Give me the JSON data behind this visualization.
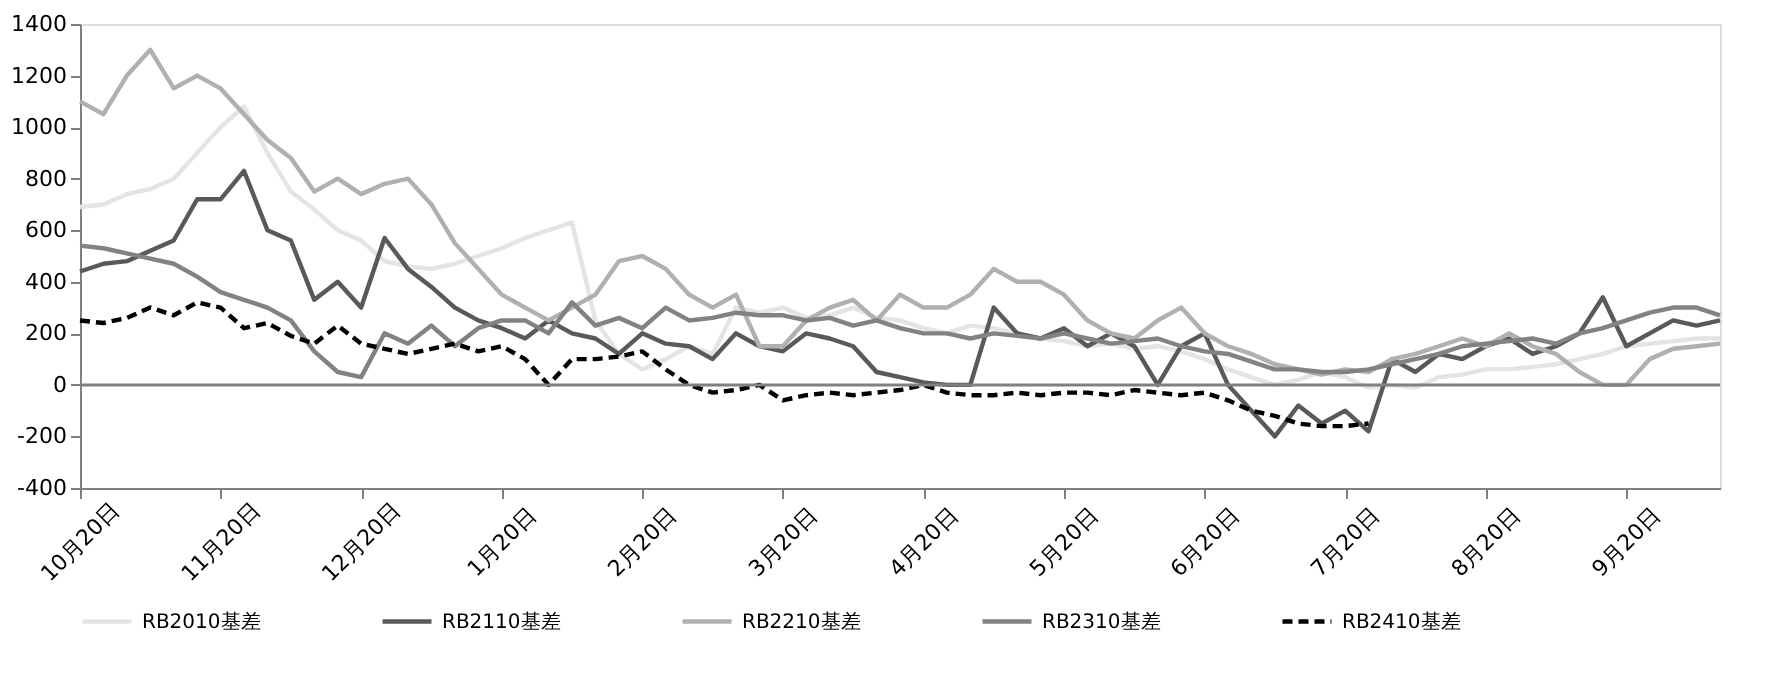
{
  "chart_data": {
    "type": "line",
    "categories": [
      "10月20日",
      null,
      null,
      null,
      null,
      null,
      "11月20日",
      null,
      null,
      null,
      null,
      null,
      "12月20日",
      null,
      null,
      null,
      null,
      null,
      "1月20日",
      null,
      null,
      null,
      null,
      null,
      "2月20日",
      null,
      null,
      null,
      null,
      null,
      "3月20日",
      null,
      null,
      null,
      null,
      null,
      "4月20日",
      null,
      null,
      null,
      null,
      null,
      "5月20日",
      null,
      null,
      null,
      null,
      null,
      "6月20日",
      null,
      null,
      null,
      null,
      null,
      "7月20日",
      null,
      null,
      null,
      null,
      null,
      "8月20日",
      null,
      null,
      null,
      null,
      null,
      "9月20日",
      null,
      null,
      null,
      null
    ],
    "series": [
      {
        "name": "RB2010基差",
        "color": "#e4e4e4",
        "values": [
          690,
          700,
          740,
          760,
          800,
          900,
          1000,
          1080,
          900,
          750,
          680,
          600,
          560,
          480,
          460,
          450,
          470,
          500,
          530,
          570,
          600,
          630,
          250,
          120,
          60,
          100,
          150,
          120,
          300,
          280,
          300,
          260,
          270,
          300,
          260,
          250,
          220,
          200,
          230,
          220,
          200,
          180,
          170,
          150,
          160,
          140,
          150,
          130,
          100,
          60,
          30,
          0,
          20,
          50,
          30,
          -10,
          0,
          -10,
          30,
          40,
          60,
          60,
          70,
          80,
          100,
          120,
          150,
          160,
          170,
          180,
          180
        ]
      },
      {
        "name": "RB2110基差",
        "color": "#595959",
        "values": [
          440,
          470,
          480,
          520,
          560,
          720,
          720,
          830,
          600,
          560,
          330,
          400,
          300,
          570,
          450,
          380,
          300,
          250,
          220,
          180,
          250,
          200,
          180,
          120,
          200,
          160,
          150,
          100,
          200,
          150,
          130,
          200,
          180,
          150,
          50,
          30,
          10,
          0,
          0,
          300,
          200,
          180,
          220,
          150,
          200,
          150,
          0,
          150,
          200,
          0,
          -100,
          -200,
          -80,
          -150,
          -100,
          -180,
          100,
          50,
          120,
          100,
          150,
          180,
          120,
          150,
          200,
          340,
          150,
          200,
          250,
          230,
          250
        ]
      },
      {
        "name": "RB2210基差",
        "color": "#b0b0b0",
        "values": [
          1100,
          1050,
          1200,
          1300,
          1150,
          1200,
          1150,
          1050,
          950,
          880,
          750,
          800,
          740,
          780,
          800,
          700,
          550,
          450,
          350,
          300,
          250,
          300,
          350,
          480,
          500,
          450,
          350,
          300,
          350,
          150,
          150,
          250,
          300,
          330,
          250,
          350,
          300,
          300,
          350,
          450,
          400,
          400,
          350,
          250,
          200,
          180,
          250,
          300,
          200,
          150,
          120,
          80,
          60,
          40,
          60,
          50,
          100,
          120,
          150,
          180,
          150,
          200,
          150,
          120,
          50,
          0,
          0,
          100,
          140,
          150,
          160
        ]
      },
      {
        "name": "RB2310基差",
        "color": "#828282",
        "values": [
          540,
          530,
          510,
          490,
          470,
          420,
          360,
          330,
          300,
          250,
          130,
          50,
          30,
          200,
          160,
          230,
          150,
          220,
          250,
          250,
          200,
          320,
          230,
          260,
          220,
          300,
          250,
          260,
          280,
          270,
          270,
          250,
          260,
          230,
          250,
          220,
          200,
          200,
          180,
          200,
          190,
          180,
          200,
          180,
          160,
          170,
          180,
          150,
          130,
          120,
          90,
          60,
          60,
          50,
          50,
          60,
          80,
          100,
          120,
          150,
          160,
          170,
          180,
          160,
          200,
          220,
          250,
          280,
          300,
          300,
          270
        ]
      },
      {
        "name": "RB2410基差",
        "color": "#000000",
        "line_style": "dashed",
        "values": [
          250,
          240,
          260,
          300,
          270,
          320,
          300,
          220,
          240,
          190,
          160,
          230,
          160,
          140,
          120,
          140,
          160,
          130,
          150,
          100,
          0,
          100,
          100,
          110,
          130,
          60,
          0,
          -30,
          -20,
          0,
          -60,
          -40,
          -30,
          -40,
          -30,
          -20,
          0,
          -30,
          -40,
          -40,
          -30,
          -40,
          -30,
          -30,
          -40,
          -20,
          -30,
          -40,
          -30,
          -60,
          -100,
          -120,
          -150,
          -160,
          -160,
          -150,
          null,
          null,
          null,
          null,
          null,
          null,
          null,
          null,
          null,
          null,
          null,
          null,
          null,
          null,
          null
        ]
      }
    ],
    "ylim": [
      -400,
      1400
    ],
    "yticks": [
      -400,
      -200,
      0,
      200,
      400,
      600,
      800,
      1000,
      1200,
      1400
    ],
    "ref_lines": [
      {
        "axis": "y",
        "value": 0,
        "color": "#808080"
      }
    ],
    "grid": false,
    "legend": "bottom"
  }
}
